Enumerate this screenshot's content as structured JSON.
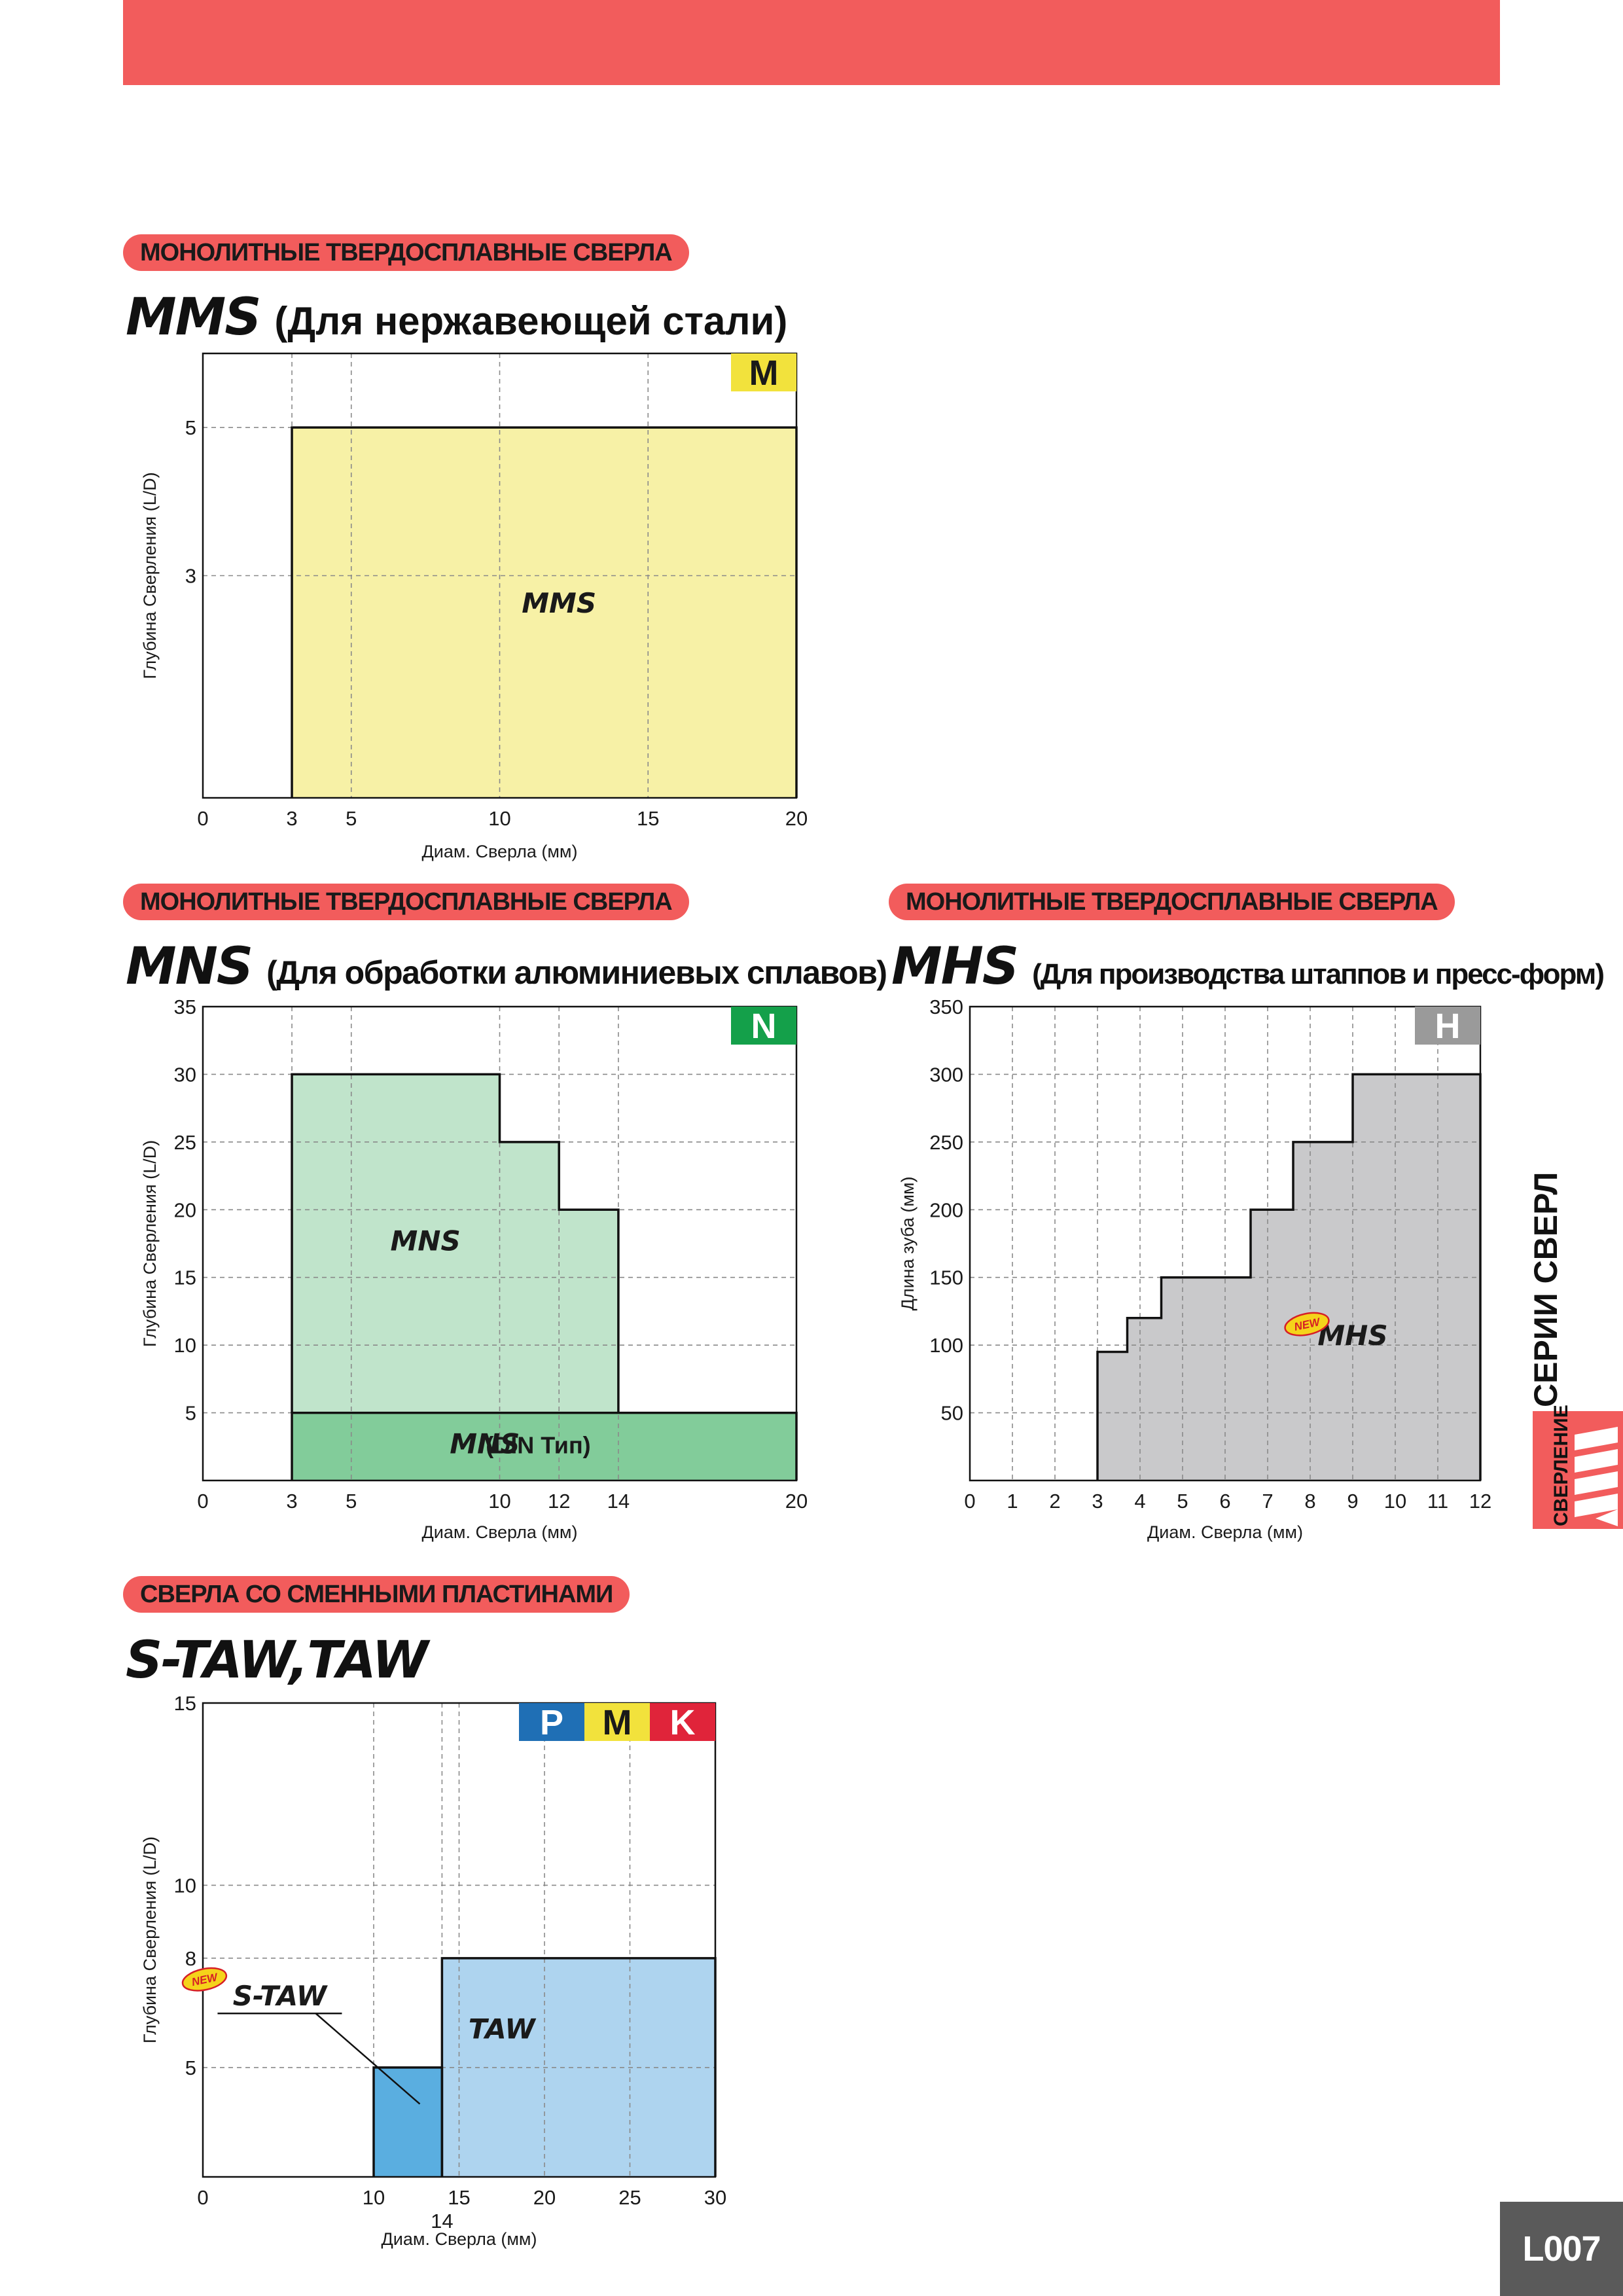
{
  "sections": {
    "mms": {
      "category": "МОНОЛИТНЫЕ ТВЕРДОСПЛАВНЫЕ СВЕРЛА",
      "name": "MMS",
      "subtitle": "(Для нержавеющей стали)",
      "badges": [
        {
          "letter": "M",
          "bg": "#f2e23c",
          "fg": "#1a1a1a"
        }
      ]
    },
    "mns": {
      "category": "МОНОЛИТНЫЕ ТВЕРДОСПЛАВНЫЕ СВЕРЛА",
      "name": "MNS",
      "subtitle": "(Для обработки алюминиевых сплавов)",
      "badges": [
        {
          "letter": "N",
          "bg": "#14a04a",
          "fg": "#ffffff"
        }
      ]
    },
    "mhs": {
      "category": "МОНОЛИТНЫЕ ТВЕРДОСПЛАВНЫЕ СВЕРЛА",
      "name": "MHS",
      "subtitle": "(Для производства штаппов и пресс-форм)",
      "badges": [
        {
          "letter": "H",
          "bg": "#9a9a9a",
          "fg": "#ffffff"
        }
      ]
    },
    "taw": {
      "category": "СВЕРЛА СО СМЕННЫМИ ПЛАСТИНАМИ",
      "name": "S-TAW,TAW",
      "subtitle": "",
      "badges": [
        {
          "letter": "P",
          "bg": "#1f6fb5",
          "fg": "#ffffff"
        },
        {
          "letter": "M",
          "bg": "#f2e23c",
          "fg": "#1a1a1a"
        },
        {
          "letter": "K",
          "bg": "#e0243a",
          "fg": "#ffffff"
        }
      ]
    }
  },
  "chart_data": [
    {
      "id": "mms",
      "type": "area",
      "xlabel": "Диам. Сверла (мм)",
      "ylabel": "Глубина Сверления (L/D)",
      "xlim": [
        0,
        20
      ],
      "ylim": [
        0,
        6
      ],
      "x_ticks": [
        0,
        3,
        5,
        10,
        15,
        20
      ],
      "y_ticks": [
        3,
        5
      ],
      "grid": true,
      "series": [
        {
          "name": "MMS",
          "fill": "#f7f1a6",
          "steps": [
            {
              "x0": 3,
              "x1": 20,
              "y0": 0,
              "y1": 5
            }
          ]
        }
      ],
      "labels": [
        {
          "text": "MMS",
          "x": 12,
          "y": 2.5,
          "italic": true
        }
      ]
    },
    {
      "id": "mns",
      "type": "area",
      "xlabel": "Диам. Сверла (мм)",
      "ylabel": "Глубина Сверления (L/D)",
      "xlim": [
        0,
        20
      ],
      "ylim": [
        0,
        35
      ],
      "x_ticks": [
        0,
        3,
        5,
        10,
        12,
        14,
        20
      ],
      "y_ticks": [
        5,
        10,
        15,
        20,
        25,
        30,
        35
      ],
      "grid": true,
      "series": [
        {
          "name": "MNS",
          "fill": "#c0e4cb",
          "steps": [
            {
              "x0": 3,
              "x1": 10,
              "y0": 5,
              "y1": 30
            },
            {
              "x0": 10,
              "x1": 12,
              "y0": 5,
              "y1": 25
            },
            {
              "x0": 12,
              "x1": 14,
              "y0": 5,
              "y1": 20
            }
          ]
        },
        {
          "name": "MNS (DIN Тип)",
          "fill": "#82cc9a",
          "steps": [
            {
              "x0": 3,
              "x1": 20,
              "y0": 0,
              "y1": 5
            }
          ]
        }
      ],
      "labels": [
        {
          "text": "MNS",
          "x": 7.5,
          "y": 17,
          "italic": true
        },
        {
          "text": "MNS",
          "x": 9.5,
          "y": 2,
          "italic": true
        },
        {
          "text": "(DIN Тип)",
          "x": 11.3,
          "y": 2,
          "italic": false
        }
      ]
    },
    {
      "id": "mhs",
      "type": "area",
      "xlabel": "Диам. Сверла (мм)",
      "ylabel": "Длина зуба (мм)",
      "xlim": [
        0,
        12
      ],
      "ylim": [
        0,
        350
      ],
      "x_ticks": [
        0,
        1,
        2,
        3,
        4,
        5,
        6,
        7,
        8,
        9,
        10,
        11,
        12
      ],
      "y_ticks": [
        50,
        100,
        150,
        200,
        250,
        300,
        350
      ],
      "grid": true,
      "series": [
        {
          "name": "MHS",
          "fill": "#c9c9cb",
          "steps": [
            {
              "x0": 3,
              "x1": 3.7,
              "y0": 0,
              "y1": 95
            },
            {
              "x0": 3.7,
              "x1": 4.5,
              "y0": 0,
              "y1": 120
            },
            {
              "x0": 4.5,
              "x1": 6.6,
              "y0": 0,
              "y1": 150
            },
            {
              "x0": 6.6,
              "x1": 7.6,
              "y0": 0,
              "y1": 200
            },
            {
              "x0": 7.6,
              "x1": 9,
              "y0": 0,
              "y1": 250
            },
            {
              "x0": 9,
              "x1": 12,
              "y0": 0,
              "y1": 300
            }
          ]
        }
      ],
      "labels": [
        {
          "text": "MHS",
          "x": 9,
          "y": 100,
          "italic": true,
          "new": "NEW"
        }
      ]
    },
    {
      "id": "taw",
      "type": "area",
      "xlabel": "Диам. Сверла (мм)",
      "ylabel": "Глубина Сверления (L/D)",
      "xlim": [
        0,
        30
      ],
      "ylim": [
        2,
        15
      ],
      "x_ticks": [
        0,
        10,
        15,
        20,
        25,
        30
      ],
      "x_ticks_extra": [
        14
      ],
      "y_ticks": [
        5,
        8,
        10,
        15
      ],
      "grid": true,
      "series": [
        {
          "name": "S-TAW",
          "fill": "#5aaee0",
          "steps": [
            {
              "x0": 10,
              "x1": 14,
              "y0": 2,
              "y1": 5
            }
          ]
        },
        {
          "name": "TAW",
          "fill": "#aed4ef",
          "steps": [
            {
              "x0": 14,
              "x1": 30,
              "y0": 2,
              "y1": 8
            }
          ]
        }
      ],
      "labels": [
        {
          "text": "TAW",
          "x": 17.5,
          "y": 5.8,
          "italic": true
        },
        {
          "text": "S-TAW",
          "x": 4.5,
          "y": 6.7,
          "italic": true,
          "new": "NEW",
          "leader_to": [
            12.7,
            5.0
          ]
        }
      ]
    }
  ],
  "side_tab": {
    "small": "СВЕРЛЕНИЕ",
    "title": "СЕРИИ СВЕРЛ"
  },
  "page_number": "L007"
}
